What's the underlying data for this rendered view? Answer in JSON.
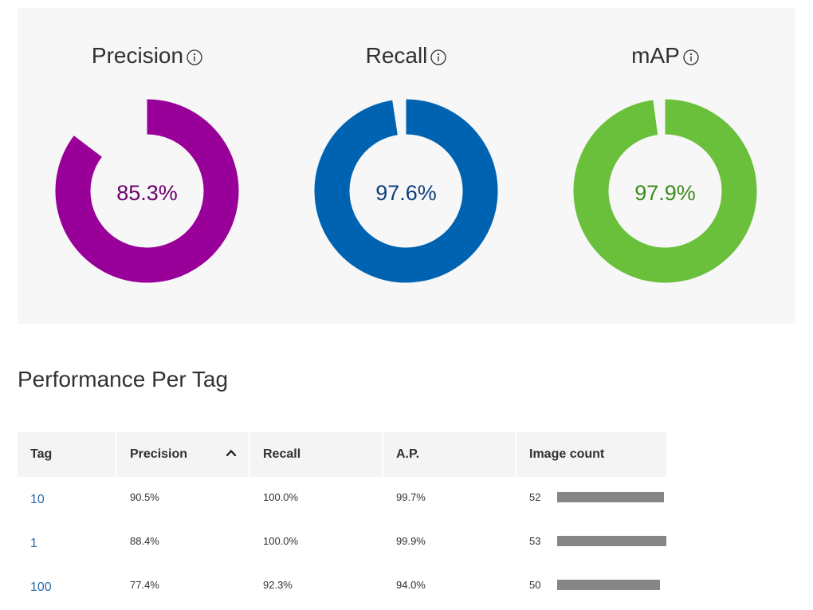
{
  "metrics": [
    {
      "key": "precision",
      "label": "Precision",
      "value": 0.853,
      "display": "85.3%",
      "color": "#990099",
      "text_color": "#6b006b"
    },
    {
      "key": "recall",
      "label": "Recall",
      "value": 0.976,
      "display": "97.6%",
      "color": "#0063b1",
      "text_color": "#0b3f7a"
    },
    {
      "key": "map",
      "label": "mAP",
      "value": 0.979,
      "display": "97.9%",
      "color": "#6abf3b",
      "text_color": "#3f8a1c"
    }
  ],
  "section_title": "Performance Per Tag",
  "table": {
    "columns": [
      "Tag",
      "Precision",
      "Recall",
      "A.P.",
      "Image count"
    ],
    "sorted_column": "Precision",
    "max_count": 53,
    "rows": [
      {
        "tag": "10",
        "precision": "90.5%",
        "recall": "100.0%",
        "ap": "99.7%",
        "count": 52
      },
      {
        "tag": "1",
        "precision": "88.4%",
        "recall": "100.0%",
        "ap": "99.9%",
        "count": 53
      },
      {
        "tag": "100",
        "precision": "77.4%",
        "recall": "92.3%",
        "ap": "94.0%",
        "count": 50
      }
    ]
  },
  "icons": {
    "info": "info-icon",
    "sort": "chevron-up-icon"
  }
}
